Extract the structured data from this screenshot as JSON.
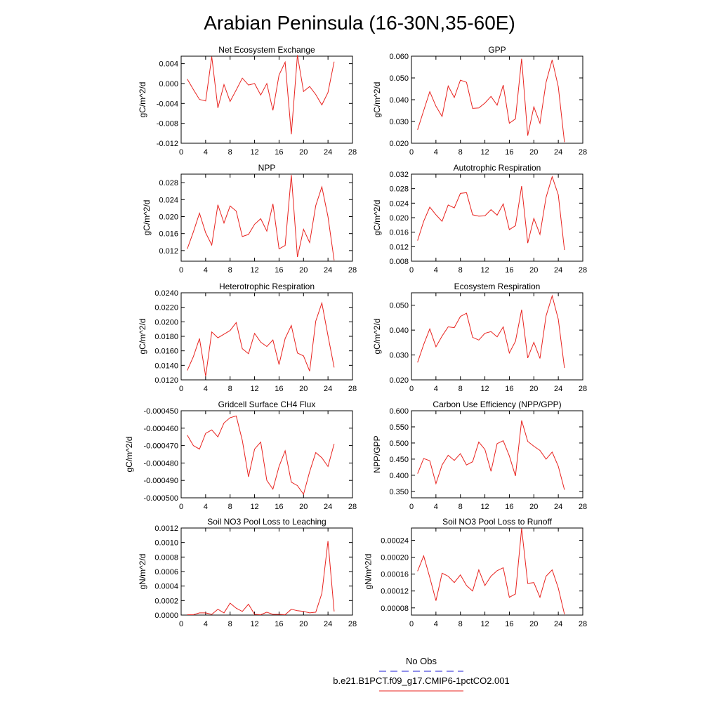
{
  "page_title": "Arabian Peninsula (16-30N,35-60E)",
  "legend": {
    "entries": [
      {
        "label": "No Obs",
        "color": "#1f1fd6",
        "style": "dashed"
      },
      {
        "label": "b.e21.B1PCT.f09_g17.CMIP6-1pctCO2.001",
        "color": "#e8231f",
        "style": "solid"
      }
    ]
  },
  "chart_data": [
    {
      "type": "line",
      "title": "Net Ecosystem Exchange",
      "xlabel": "",
      "ylabel": "gC/m^2/d",
      "xlim": [
        0,
        28
      ],
      "xticks": [
        0,
        4,
        8,
        12,
        16,
        20,
        24,
        28
      ],
      "ylim": [
        -0.012,
        0.0055
      ],
      "yticks": [
        -0.012,
        -0.008,
        -0.004,
        0.0,
        0.004
      ],
      "ytick_labels": [
        "-0.012",
        "-0.008",
        "-0.004",
        "0.000",
        "0.004"
      ],
      "x": [
        1,
        2,
        3,
        4,
        5,
        6,
        7,
        8,
        9,
        10,
        11,
        12,
        13,
        14,
        15,
        16,
        17,
        18,
        19,
        20,
        21,
        22,
        23,
        24,
        25
      ],
      "series": [
        {
          "color": "#e8231f",
          "values": [
            0.0009,
            -0.0012,
            -0.0032,
            -0.0035,
            0.0054,
            -0.0049,
            -0.0002,
            -0.0036,
            -0.0013,
            0.0011,
            -0.0003,
            0.0,
            -0.0023,
            0.0,
            -0.0054,
            0.0017,
            0.0043,
            -0.0102,
            0.0057,
            -0.0016,
            -0.0006,
            -0.0022,
            -0.0043,
            -0.0018,
            0.0044
          ]
        }
      ]
    },
    {
      "type": "line",
      "title": "GPP",
      "xlabel": "",
      "ylabel": "gC/m^2/d",
      "xlim": [
        0,
        28
      ],
      "xticks": [
        0,
        4,
        8,
        12,
        16,
        20,
        24,
        28
      ],
      "ylim": [
        0.02,
        0.06
      ],
      "yticks": [
        0.02,
        0.03,
        0.04,
        0.05,
        0.06
      ],
      "ytick_labels": [
        "0.020",
        "0.030",
        "0.040",
        "0.050",
        "0.060"
      ],
      "x": [
        1,
        2,
        3,
        4,
        5,
        6,
        7,
        8,
        9,
        10,
        11,
        12,
        13,
        14,
        15,
        16,
        17,
        18,
        19,
        20,
        21,
        22,
        23,
        24,
        25
      ],
      "series": [
        {
          "color": "#e8231f",
          "values": [
            0.0262,
            0.035,
            0.0437,
            0.037,
            0.0323,
            0.0463,
            0.041,
            0.049,
            0.048,
            0.036,
            0.0362,
            0.0385,
            0.0415,
            0.0375,
            0.0467,
            0.0292,
            0.0312,
            0.0588,
            0.0235,
            0.0367,
            0.0292,
            0.048,
            0.0583,
            0.046,
            0.0205
          ]
        }
      ]
    },
    {
      "type": "line",
      "title": "NPP",
      "xlabel": "",
      "ylabel": "gC/m^2/d",
      "xlim": [
        0,
        28
      ],
      "xticks": [
        0,
        4,
        8,
        12,
        16,
        20,
        24,
        28
      ],
      "ylim": [
        0.0095,
        0.03
      ],
      "yticks": [
        0.012,
        0.016,
        0.02,
        0.024,
        0.028
      ],
      "ytick_labels": [
        "0.012",
        "0.016",
        "0.020",
        "0.024",
        "0.028"
      ],
      "x": [
        1,
        2,
        3,
        4,
        5,
        6,
        7,
        8,
        9,
        10,
        11,
        12,
        13,
        14,
        15,
        16,
        17,
        18,
        19,
        20,
        21,
        22,
        23,
        24,
        25
      ],
      "series": [
        {
          "color": "#e8231f",
          "values": [
            0.0124,
            0.0164,
            0.0208,
            0.0162,
            0.0133,
            0.0228,
            0.0185,
            0.0225,
            0.0213,
            0.0153,
            0.0158,
            0.0182,
            0.0195,
            0.0166,
            0.023,
            0.0124,
            0.0132,
            0.0298,
            0.0105,
            0.017,
            0.0139,
            0.0226,
            0.027,
            0.02,
            0.0097
          ]
        }
      ]
    },
    {
      "type": "line",
      "title": "Autotrophic Respiration",
      "xlabel": "",
      "ylabel": "gC/m^2/d",
      "xlim": [
        0,
        28
      ],
      "xticks": [
        0,
        4,
        8,
        12,
        16,
        20,
        24,
        28
      ],
      "ylim": [
        0.008,
        0.032
      ],
      "yticks": [
        0.008,
        0.012,
        0.016,
        0.02,
        0.024,
        0.028,
        0.032
      ],
      "ytick_labels": [
        "0.008",
        "0.012",
        "0.016",
        "0.020",
        "0.024",
        "0.028",
        "0.032"
      ],
      "x": [
        1,
        2,
        3,
        4,
        5,
        6,
        7,
        8,
        9,
        10,
        11,
        12,
        13,
        14,
        15,
        16,
        17,
        18,
        19,
        20,
        21,
        22,
        23,
        24,
        25
      ],
      "series": [
        {
          "color": "#e8231f",
          "values": [
            0.0137,
            0.019,
            0.0229,
            0.0208,
            0.019,
            0.0235,
            0.0227,
            0.0267,
            0.0269,
            0.0208,
            0.0204,
            0.0205,
            0.0222,
            0.0207,
            0.0238,
            0.0167,
            0.0178,
            0.0287,
            0.013,
            0.0198,
            0.0154,
            0.0256,
            0.0313,
            0.0263,
            0.0111
          ]
        }
      ]
    },
    {
      "type": "line",
      "title": "Heterotrophic Respiration",
      "xlabel": "",
      "ylabel": "gC/m^2/d",
      "xlim": [
        0,
        28
      ],
      "xticks": [
        0,
        4,
        8,
        12,
        16,
        20,
        24,
        28
      ],
      "ylim": [
        0.012,
        0.024
      ],
      "yticks": [
        0.012,
        0.014,
        0.016,
        0.018,
        0.02,
        0.022,
        0.024
      ],
      "ytick_labels": [
        "0.0120",
        "0.0140",
        "0.0160",
        "0.0180",
        "0.0200",
        "0.0220",
        "0.0240"
      ],
      "x": [
        1,
        2,
        3,
        4,
        5,
        6,
        7,
        8,
        9,
        10,
        11,
        12,
        13,
        14,
        15,
        16,
        17,
        18,
        19,
        20,
        21,
        22,
        23,
        24,
        25
      ],
      "series": [
        {
          "color": "#e8231f",
          "values": [
            0.0133,
            0.0152,
            0.0177,
            0.0125,
            0.0186,
            0.0178,
            0.0183,
            0.0188,
            0.0199,
            0.0163,
            0.0156,
            0.0184,
            0.0172,
            0.0166,
            0.0175,
            0.0141,
            0.0177,
            0.0195,
            0.0157,
            0.0153,
            0.0132,
            0.0201,
            0.0226,
            0.0181,
            0.0137
          ]
        }
      ]
    },
    {
      "type": "line",
      "title": "Ecosystem Respiration",
      "xlabel": "",
      "ylabel": "gC/m^2/d",
      "xlim": [
        0,
        28
      ],
      "xticks": [
        0,
        4,
        8,
        12,
        16,
        20,
        24,
        28
      ],
      "ylim": [
        0.02,
        0.055
      ],
      "yticks": [
        0.02,
        0.03,
        0.04,
        0.05
      ],
      "ytick_labels": [
        "0.020",
        "0.030",
        "0.040",
        "0.050"
      ],
      "x": [
        1,
        2,
        3,
        4,
        5,
        6,
        7,
        8,
        9,
        10,
        11,
        12,
        13,
        14,
        15,
        16,
        17,
        18,
        19,
        20,
        21,
        22,
        23,
        24,
        25
      ],
      "series": [
        {
          "color": "#e8231f",
          "values": [
            0.027,
            0.0342,
            0.0405,
            0.0333,
            0.0376,
            0.0413,
            0.041,
            0.0455,
            0.0468,
            0.0371,
            0.036,
            0.0387,
            0.0394,
            0.0373,
            0.0413,
            0.0308,
            0.0355,
            0.0482,
            0.0288,
            0.0351,
            0.0286,
            0.0457,
            0.0538,
            0.0444,
            0.0248
          ]
        }
      ]
    },
    {
      "type": "line",
      "title": "Gridcell Surface CH4 Flux",
      "xlabel": "",
      "ylabel": "gC/m^2/d",
      "xlim": [
        0,
        28
      ],
      "xticks": [
        0,
        4,
        8,
        12,
        16,
        20,
        24,
        28
      ],
      "ylim": [
        -0.0005,
        -0.00045
      ],
      "yticks": [
        -0.0005,
        -0.00049,
        -0.00048,
        -0.00047,
        -0.00046,
        -0.00045
      ],
      "ytick_labels": [
        "-0.000500",
        "-0.000490",
        "-0.000480",
        "-0.000470",
        "-0.000460",
        "-0.000450"
      ],
      "x": [
        1,
        2,
        3,
        4,
        5,
        6,
        7,
        8,
        9,
        10,
        11,
        12,
        13,
        14,
        15,
        16,
        17,
        18,
        19,
        20,
        21,
        22,
        23,
        24,
        25
      ],
      "series": [
        {
          "color": "#e8231f",
          "values": [
            -0.000464,
            -0.00047,
            -0.000472,
            -0.000463,
            -0.000461,
            -0.000465,
            -0.000457,
            -0.000454,
            -0.000453,
            -0.000467,
            -0.000488,
            -0.000472,
            -0.000468,
            -0.00049,
            -0.000495,
            -0.000482,
            -0.000473,
            -0.000491,
            -0.000493,
            -0.000498,
            -0.000485,
            -0.000474,
            -0.000477,
            -0.000482,
            -0.000469
          ]
        }
      ]
    },
    {
      "type": "line",
      "title": "Carbon Use Efficiency (NPP/GPP)",
      "xlabel": "",
      "ylabel": "NPP/GPP",
      "xlim": [
        0,
        28
      ],
      "xticks": [
        0,
        4,
        8,
        12,
        16,
        20,
        24,
        28
      ],
      "ylim": [
        0.33,
        0.6
      ],
      "yticks": [
        0.35,
        0.4,
        0.45,
        0.5,
        0.55,
        0.6
      ],
      "ytick_labels": [
        "0.350",
        "0.400",
        "0.450",
        "0.500",
        "0.550",
        "0.600"
      ],
      "x": [
        1,
        2,
        3,
        4,
        5,
        6,
        7,
        8,
        9,
        10,
        11,
        12,
        13,
        14,
        15,
        16,
        17,
        18,
        19,
        20,
        21,
        22,
        23,
        24,
        25
      ],
      "series": [
        {
          "color": "#e8231f",
          "values": [
            0.405,
            0.452,
            0.445,
            0.374,
            0.432,
            0.462,
            0.446,
            0.467,
            0.432,
            0.442,
            0.503,
            0.48,
            0.412,
            0.498,
            0.507,
            0.46,
            0.398,
            0.57,
            0.505,
            0.49,
            0.477,
            0.45,
            0.472,
            0.428,
            0.355
          ]
        }
      ]
    },
    {
      "type": "line",
      "title": "Soil NO3 Pool Loss to Leaching",
      "xlabel": "",
      "ylabel": "gN/m^2/d",
      "xlim": [
        0,
        28
      ],
      "xticks": [
        0,
        4,
        8,
        12,
        16,
        20,
        24,
        28
      ],
      "ylim": [
        0,
        0.0012
      ],
      "yticks": [
        0,
        0.0002,
        0.0004,
        0.0006,
        0.0008,
        0.001,
        0.0012
      ],
      "ytick_labels": [
        "0.0000",
        "0.0002",
        "0.0004",
        "0.0006",
        "0.0008",
        "0.0010",
        "0.0012"
      ],
      "x": [
        1,
        2,
        3,
        4,
        5,
        6,
        7,
        8,
        9,
        10,
        11,
        12,
        13,
        14,
        15,
        16,
        17,
        18,
        19,
        20,
        21,
        22,
        23,
        24,
        25
      ],
      "series": [
        {
          "color": "#e8231f",
          "values": [
            5e-06,
            5e-06,
            3e-05,
            3e-05,
            1e-05,
            8e-05,
            3e-05,
            0.000165,
            9.5e-05,
            5e-05,
            0.00015,
            1e-05,
            5e-06,
            4e-05,
            1e-05,
            1e-05,
            5e-06,
            8e-05,
            6e-05,
            5e-05,
            3e-05,
            4e-05,
            0.0003,
            0.00102,
            5e-05
          ]
        }
      ]
    },
    {
      "type": "line",
      "title": "Soil NO3 Pool Loss to Runoff",
      "xlabel": "",
      "ylabel": "gN/m^2/d",
      "xlim": [
        0,
        28
      ],
      "xticks": [
        0,
        4,
        8,
        12,
        16,
        20,
        24,
        28
      ],
      "ylim": [
        6.3e-05,
        0.000269
      ],
      "yticks": [
        8e-05,
        0.00012,
        0.00016,
        0.0002,
        0.00024
      ],
      "ytick_labels": [
        "0.00008",
        "0.00012",
        "0.00016",
        "0.00020",
        "0.00024"
      ],
      "x": [
        1,
        2,
        3,
        4,
        5,
        6,
        7,
        8,
        9,
        10,
        11,
        12,
        13,
        14,
        15,
        16,
        17,
        18,
        19,
        20,
        21,
        22,
        23,
        24,
        25
      ],
      "series": [
        {
          "color": "#e8231f",
          "values": [
            0.000167,
            0.000203,
            0.000152,
            9.7e-05,
            0.000162,
            0.000155,
            0.00014,
            0.000158,
            0.000133,
            0.00012,
            0.00017,
            0.000133,
            0.000155,
            0.000168,
            0.000175,
            0.000105,
            0.000113,
            0.000268,
            0.000138,
            0.00014,
            0.000105,
            0.000155,
            0.00017,
            0.000127,
            6.5e-05
          ]
        }
      ]
    }
  ]
}
